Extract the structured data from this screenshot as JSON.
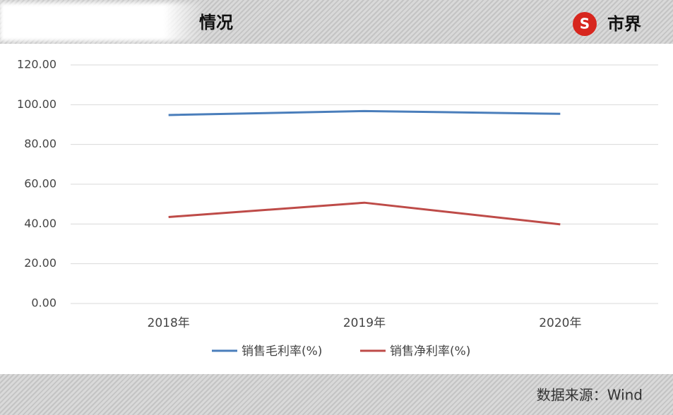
{
  "chart_data": {
    "type": "line",
    "title": "情况",
    "logo": "市界",
    "source": "数据来源：Wind",
    "categories": [
      "2018年",
      "2019年",
      "2020年"
    ],
    "series": [
      {
        "name": "销售毛利率(%)",
        "color": "#4a7ebb",
        "values": [
          94.8,
          96.8,
          95.4
        ]
      },
      {
        "name": "销售净利率(%)",
        "color": "#be4b48",
        "values": [
          43.5,
          50.7,
          39.8
        ]
      }
    ],
    "ylim": [
      0,
      120
    ],
    "yticks": [
      {
        "value": 0,
        "label": "0.00"
      },
      {
        "value": 20,
        "label": "20.00"
      },
      {
        "value": 40,
        "label": "40.00"
      },
      {
        "value": 60,
        "label": "60.00"
      },
      {
        "value": 80,
        "label": "80.00"
      },
      {
        "value": 100,
        "label": "100.00"
      },
      {
        "value": 120,
        "label": "120.00"
      }
    ],
    "grid": true,
    "legend": "bottom"
  }
}
